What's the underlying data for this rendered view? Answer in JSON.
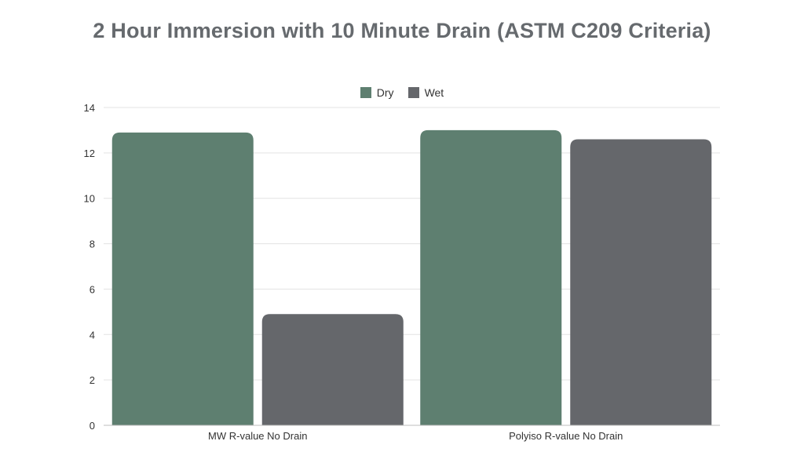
{
  "chart_data": {
    "type": "bar",
    "title": "2 Hour Immersion with 10 Minute Drain (ASTM C209 Criteria)",
    "categories": [
      "MW R-value No Drain",
      "Polyiso R-value No Drain"
    ],
    "series": [
      {
        "name": "Dry",
        "color": "#5e7f70",
        "values": [
          12.9,
          13.0
        ]
      },
      {
        "name": "Wet",
        "color": "#65676b",
        "values": [
          4.9,
          12.6
        ]
      }
    ],
    "xlabel": "",
    "ylabel": "",
    "ylim": [
      0,
      14
    ],
    "yticks": [
      0,
      2,
      4,
      6,
      8,
      10,
      12,
      14
    ],
    "grid": true,
    "legend_position": "top-center"
  }
}
